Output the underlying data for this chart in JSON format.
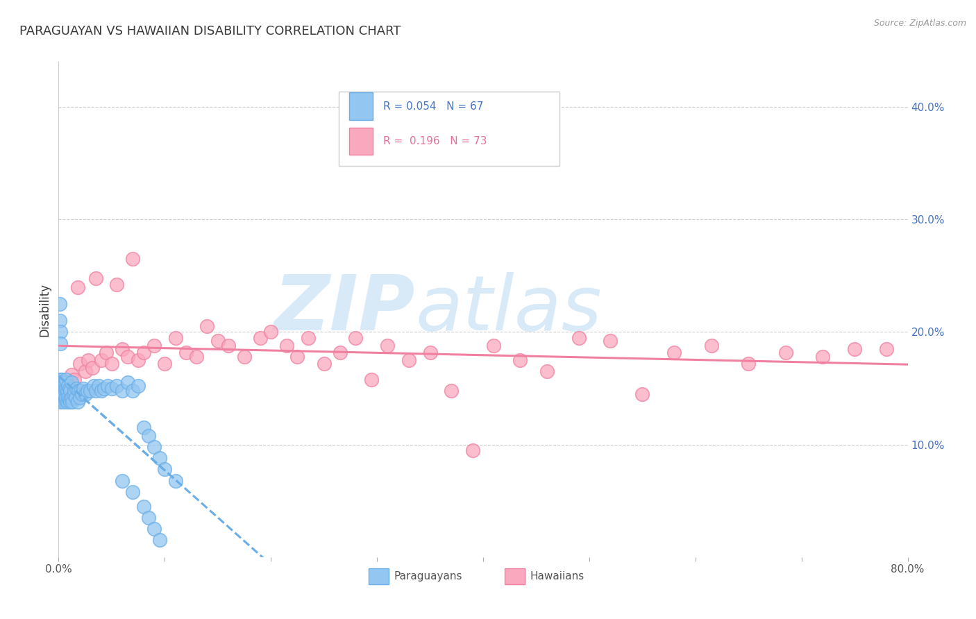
{
  "title": "PARAGUAYAN VS HAWAIIAN DISABILITY CORRELATION CHART",
  "source": "Source: ZipAtlas.com",
  "ylabel": "Disability",
  "xlim": [
    0.0,
    0.8
  ],
  "ylim": [
    0.0,
    0.44
  ],
  "yticks_right": [
    0.1,
    0.2,
    0.3,
    0.4
  ],
  "ytick_labels_right": [
    "10.0%",
    "20.0%",
    "30.0%",
    "40.0%"
  ],
  "paraguayan_color": "#93c6f0",
  "hawaiian_color": "#f9a8be",
  "paraguayan_edge": "#6aaee8",
  "hawaiian_edge": "#f080a0",
  "trend_blue_color": "#6aaee8",
  "trend_pink_color": "#f080a0",
  "paraguayan_x": [
    0.001,
    0.001,
    0.001,
    0.001,
    0.002,
    0.002,
    0.002,
    0.002,
    0.002,
    0.003,
    0.003,
    0.003,
    0.003,
    0.004,
    0.004,
    0.004,
    0.005,
    0.005,
    0.005,
    0.006,
    0.006,
    0.006,
    0.007,
    0.007,
    0.007,
    0.008,
    0.008,
    0.009,
    0.009,
    0.01,
    0.01,
    0.011,
    0.011,
    0.012,
    0.012,
    0.013,
    0.014,
    0.015,
    0.016,
    0.017,
    0.018,
    0.019,
    0.02,
    0.021,
    0.022,
    0.023,
    0.025,
    0.027,
    0.03,
    0.033,
    0.035,
    0.038,
    0.04,
    0.043,
    0.046,
    0.05,
    0.055,
    0.06,
    0.065,
    0.07,
    0.075,
    0.08,
    0.085,
    0.09,
    0.095,
    0.1,
    0.11
  ],
  "paraguayan_y": [
    0.14,
    0.145,
    0.148,
    0.15,
    0.138,
    0.143,
    0.148,
    0.152,
    0.158,
    0.142,
    0.147,
    0.153,
    0.158,
    0.14,
    0.146,
    0.152,
    0.138,
    0.145,
    0.155,
    0.14,
    0.148,
    0.155,
    0.142,
    0.15,
    0.158,
    0.138,
    0.148,
    0.142,
    0.152,
    0.14,
    0.15,
    0.138,
    0.148,
    0.142,
    0.155,
    0.138,
    0.145,
    0.148,
    0.142,
    0.15,
    0.138,
    0.148,
    0.142,
    0.148,
    0.145,
    0.15,
    0.145,
    0.148,
    0.148,
    0.152,
    0.148,
    0.152,
    0.148,
    0.15,
    0.152,
    0.15,
    0.152,
    0.148,
    0.155,
    0.148,
    0.152,
    0.115,
    0.108,
    0.098,
    0.088,
    0.078,
    0.068
  ],
  "paraguayan_y_outliers": [
    0.225,
    0.21,
    0.2,
    0.19,
    0.068,
    0.058,
    0.045,
    0.035,
    0.025,
    0.015
  ],
  "paraguayan_x_outliers": [
    0.001,
    0.001,
    0.002,
    0.002,
    0.06,
    0.07,
    0.08,
    0.085,
    0.09,
    0.095
  ],
  "hawaiian_x": [
    0.008,
    0.012,
    0.015,
    0.018,
    0.02,
    0.025,
    0.028,
    0.032,
    0.035,
    0.04,
    0.045,
    0.05,
    0.055,
    0.06,
    0.065,
    0.07,
    0.075,
    0.08,
    0.09,
    0.1,
    0.11,
    0.12,
    0.13,
    0.14,
    0.15,
    0.16,
    0.175,
    0.19,
    0.2,
    0.215,
    0.225,
    0.235,
    0.25,
    0.265,
    0.28,
    0.295,
    0.31,
    0.33,
    0.35,
    0.37,
    0.39,
    0.41,
    0.435,
    0.46,
    0.49,
    0.52,
    0.55,
    0.58,
    0.615,
    0.65,
    0.685,
    0.72,
    0.75,
    0.78
  ],
  "hawaiian_y": [
    0.155,
    0.162,
    0.158,
    0.24,
    0.172,
    0.165,
    0.175,
    0.168,
    0.248,
    0.175,
    0.182,
    0.172,
    0.242,
    0.185,
    0.178,
    0.265,
    0.175,
    0.182,
    0.188,
    0.172,
    0.195,
    0.182,
    0.178,
    0.205,
    0.192,
    0.188,
    0.178,
    0.195,
    0.2,
    0.188,
    0.178,
    0.195,
    0.172,
    0.182,
    0.195,
    0.158,
    0.188,
    0.175,
    0.182,
    0.148,
    0.095,
    0.188,
    0.175,
    0.165,
    0.195,
    0.192,
    0.145,
    0.182,
    0.188,
    0.172,
    0.182,
    0.178,
    0.185,
    0.185
  ],
  "background_color": "#ffffff",
  "grid_color": "#cccccc",
  "title_color": "#3a3a3a",
  "watermark_zip": "ZIP",
  "watermark_atlas": "atlas",
  "watermark_color": "#d8eaf8"
}
